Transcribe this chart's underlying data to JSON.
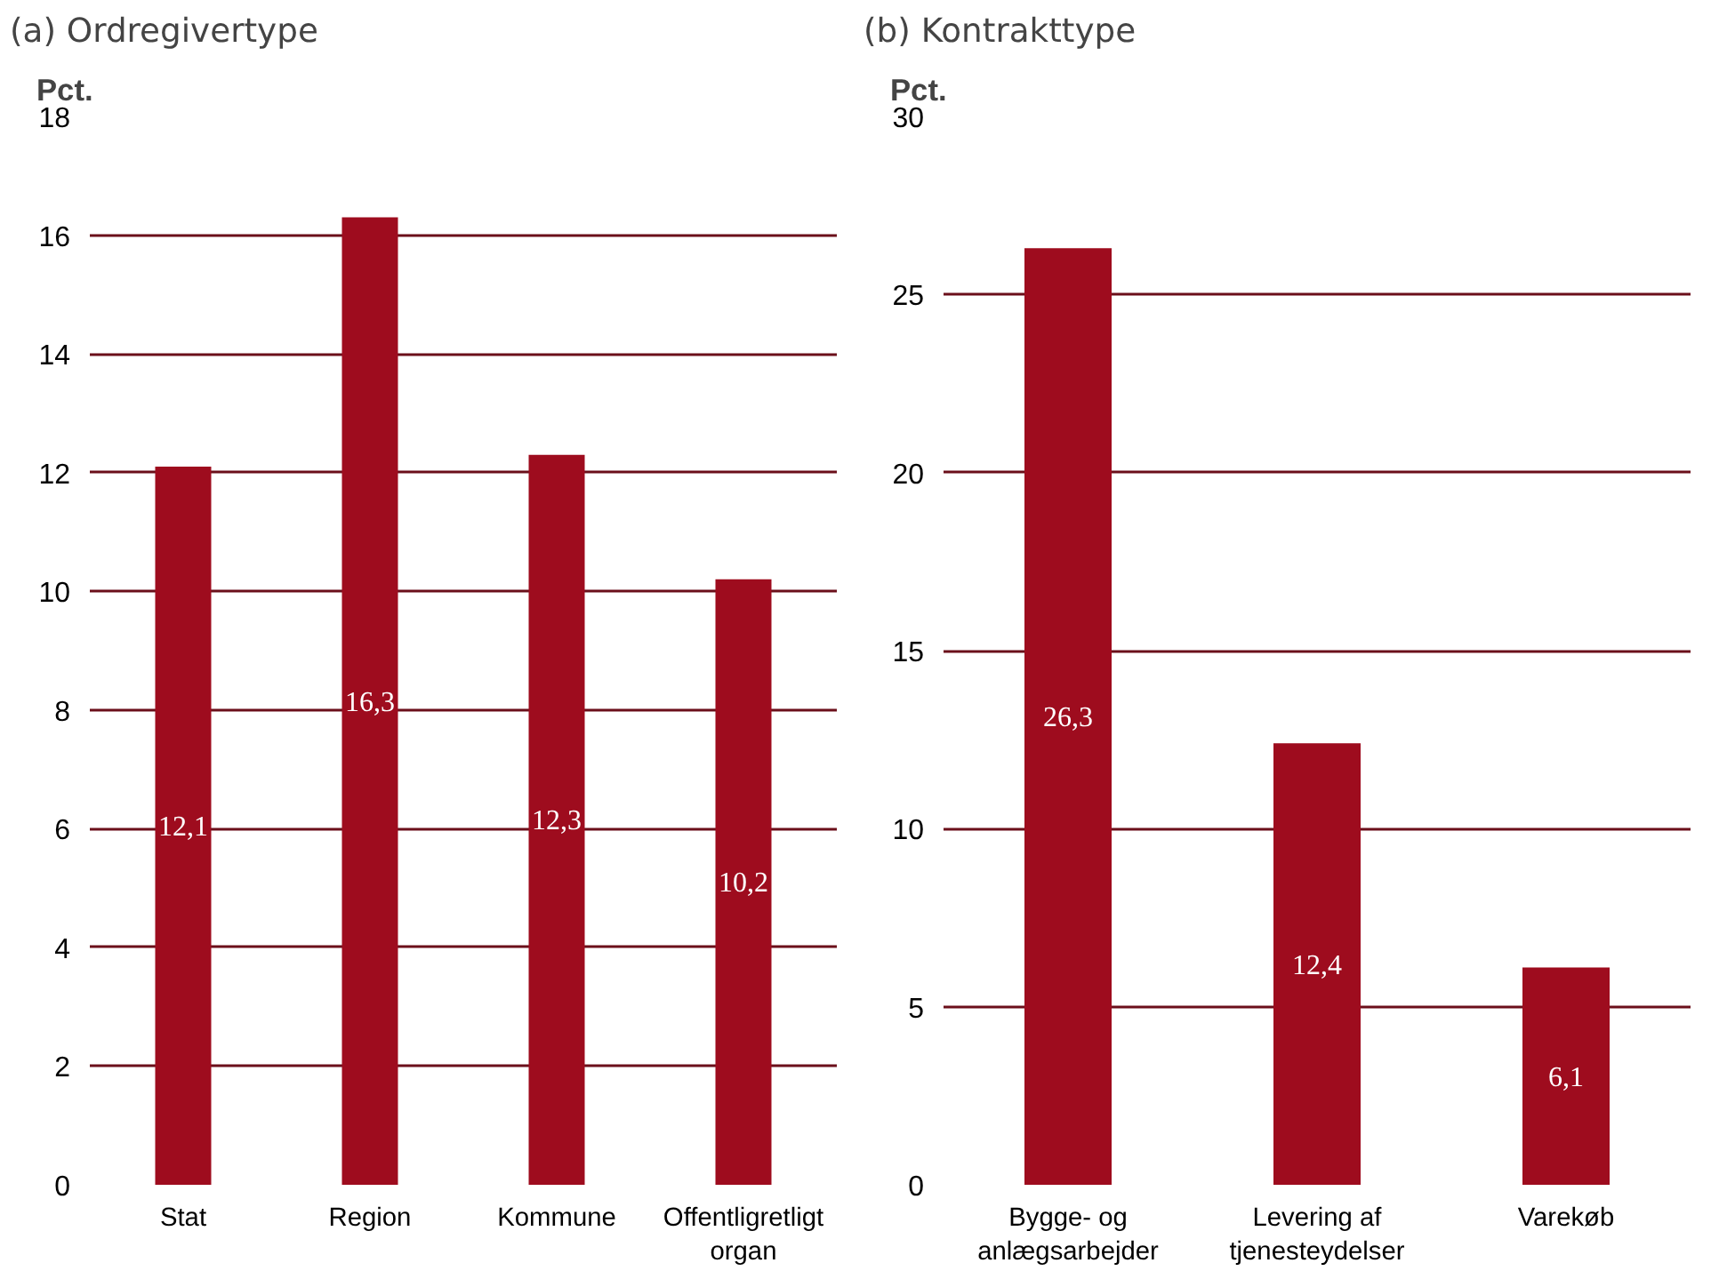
{
  "chart_data": [
    {
      "type": "bar",
      "title": "(a) Ordregivertype",
      "ylabel": "Pct.",
      "categories": [
        "Stat",
        "Region",
        "Kommune",
        "Offentligretligt\norgan"
      ],
      "values": [
        12.1,
        16.3,
        12.3,
        10.2
      ],
      "value_labels": [
        "12,1",
        "16,3",
        "12,3",
        "10,2"
      ],
      "color": "#9e0c1e",
      "ylim": [
        0,
        18
      ],
      "yticks": [
        0,
        2,
        4,
        6,
        8,
        10,
        12,
        14,
        16,
        18
      ],
      "grid": "y"
    },
    {
      "type": "bar",
      "title": "(b) Kontrakttype",
      "ylabel": "Pct.",
      "categories": [
        "Bygge- og\nanlægsarbejder",
        "Levering af\ntjenesteydelser",
        "Varekøb"
      ],
      "values": [
        26.3,
        12.4,
        6.1
      ],
      "value_labels": [
        "26,3",
        "12,4",
        "6,1"
      ],
      "color": "#9e0c1e",
      "ylim": [
        0,
        30
      ],
      "yticks": [
        0,
        5,
        10,
        15,
        20,
        25,
        30
      ],
      "grid": "y"
    }
  ]
}
